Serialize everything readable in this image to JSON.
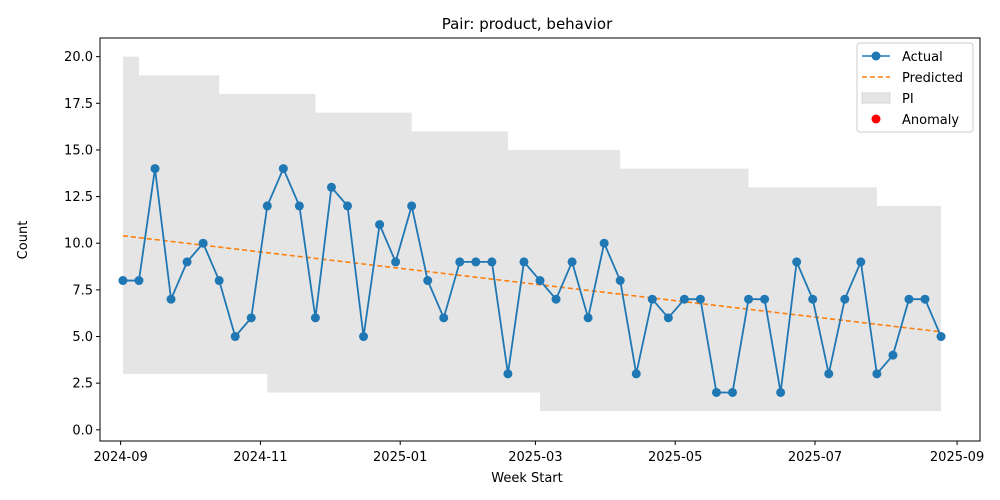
{
  "chart_data": {
    "type": "line",
    "title": "Pair: product, behavior",
    "xlabel": "Week Start",
    "ylabel": "Count",
    "x_start": "2024-09-02",
    "x_interval_days": 7,
    "xlim": [
      "2024-08-23",
      "2025-09-11"
    ],
    "ylim": [
      -0.6,
      21.0
    ],
    "y_ticks": [
      0.0,
      2.5,
      5.0,
      7.5,
      10.0,
      12.5,
      15.0,
      17.5,
      20.0
    ],
    "y_tick_labels": [
      "0.0",
      "2.5",
      "5.0",
      "7.5",
      "10.0",
      "12.5",
      "15.0",
      "17.5",
      "20.0"
    ],
    "x_ticks": [
      "2024-09-01",
      "2024-11-01",
      "2025-01-01",
      "2025-03-01",
      "2025-05-01",
      "2025-07-01",
      "2025-09-01"
    ],
    "x_tick_labels": [
      "2024-09",
      "2024-11",
      "2025-01",
      "2025-03",
      "2025-05",
      "2025-07",
      "2025-09"
    ],
    "grid": false,
    "legend_position": "top-right",
    "series": [
      {
        "name": "Actual",
        "style": "line-marker",
        "color": "#1f77b4",
        "values": [
          8,
          8,
          14,
          7,
          9,
          10,
          8,
          5,
          6,
          12,
          14,
          12,
          6,
          13,
          12,
          5,
          11,
          9,
          12,
          8,
          6,
          9,
          9,
          9,
          3,
          9,
          8,
          7,
          9,
          6,
          10,
          8,
          3,
          7,
          6,
          7,
          7,
          2,
          2,
          7,
          7,
          2,
          9,
          7,
          3,
          7,
          9,
          3,
          4,
          7,
          7,
          5
        ]
      },
      {
        "name": "Predicted",
        "style": "dashed",
        "color": "#ff7f0e",
        "values": [
          10.4,
          5.25
        ]
      },
      {
        "name": "PI",
        "style": "band",
        "color": "#e5e5e5",
        "lower": [
          3,
          3,
          3,
          3,
          3,
          3,
          3,
          3,
          3,
          2,
          2,
          2,
          2,
          2,
          2,
          2,
          2,
          2,
          2,
          2,
          2,
          2,
          2,
          2,
          2,
          2,
          1,
          1,
          1,
          1,
          1,
          1,
          1,
          1,
          1,
          1,
          1,
          1,
          1,
          1,
          1,
          1,
          1,
          1,
          1,
          1,
          1,
          1,
          1,
          1,
          1,
          0
        ],
        "upper": [
          20,
          19,
          19,
          19,
          19,
          19,
          18,
          18,
          18,
          18,
          18,
          18,
          17,
          17,
          17,
          17,
          17,
          17,
          16,
          16,
          16,
          16,
          16,
          16,
          15,
          15,
          15,
          15,
          15,
          15,
          15,
          14,
          14,
          14,
          14,
          14,
          14,
          14,
          14,
          13,
          13,
          13,
          13,
          13,
          13,
          13,
          13,
          12,
          12,
          12,
          12,
          12
        ]
      },
      {
        "name": "Anomaly",
        "style": "scatter",
        "color": "#ff0000",
        "values": []
      }
    ]
  }
}
